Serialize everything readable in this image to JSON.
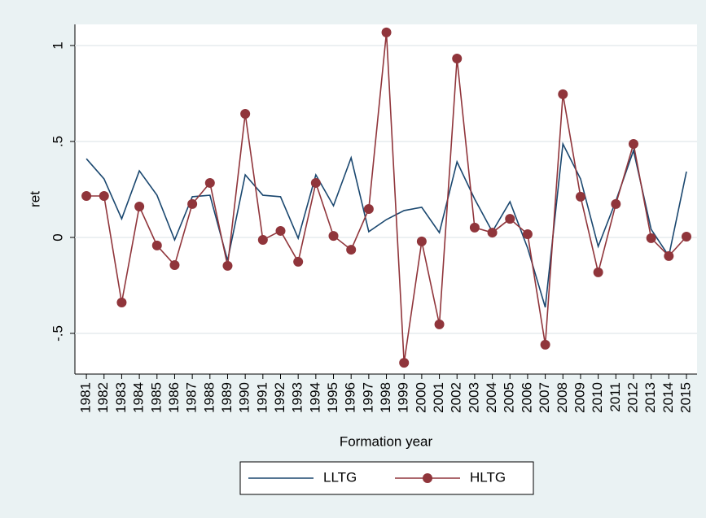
{
  "chart_data": {
    "type": "line",
    "x": [
      1981,
      1982,
      1983,
      1984,
      1985,
      1986,
      1987,
      1988,
      1989,
      1990,
      1991,
      1992,
      1993,
      1994,
      1995,
      1996,
      1997,
      1998,
      1999,
      2000,
      2001,
      2002,
      2003,
      2004,
      2005,
      2006,
      2007,
      2008,
      2009,
      2010,
      2011,
      2012,
      2013,
      2014,
      2015
    ],
    "series": [
      {
        "name": "LLTG",
        "color": "#1a476f",
        "marker": false,
        "values": [
          0.41,
          0.305,
          0.097,
          0.347,
          0.22,
          -0.013,
          0.212,
          0.22,
          -0.12,
          0.326,
          0.22,
          0.212,
          -0.004,
          0.326,
          0.165,
          0.415,
          0.03,
          0.093,
          0.14,
          0.157,
          0.025,
          0.394,
          0.2,
          0.03,
          0.186,
          -0.055,
          -0.364,
          0.487,
          0.305,
          -0.047,
          0.19,
          0.453,
          0.042,
          -0.097,
          0.343
        ]
      },
      {
        "name": "HLTG",
        "color": "#90353b",
        "marker": true,
        "values": [
          0.216,
          0.216,
          -0.339,
          0.161,
          -0.042,
          -0.144,
          0.174,
          0.284,
          -0.148,
          0.644,
          -0.013,
          0.034,
          -0.127,
          0.284,
          0.008,
          -0.064,
          0.148,
          1.068,
          -0.653,
          -0.021,
          -0.453,
          0.932,
          0.051,
          0.025,
          0.097,
          0.017,
          -0.559,
          0.746,
          0.212,
          -0.182,
          0.174,
          0.487,
          -0.004,
          -0.097,
          0.004
        ]
      }
    ],
    "xlabel": "Formation year",
    "ylabel": "ret",
    "xlim": [
      1980.35,
      2015.6
    ],
    "ylim": [
      -0.712,
      1.11
    ],
    "xticks": [
      1981,
      1982,
      1983,
      1984,
      1985,
      1986,
      1987,
      1988,
      1989,
      1990,
      1991,
      1992,
      1993,
      1994,
      1995,
      1996,
      1997,
      1998,
      1999,
      2000,
      2001,
      2002,
      2003,
      2004,
      2005,
      2006,
      2007,
      2008,
      2009,
      2010,
      2011,
      2012,
      2013,
      2014,
      2015
    ],
    "yticks": [
      {
        "value": -0.5,
        "label": "-.5"
      },
      0,
      {
        "value": 0.5,
        "label": ".5"
      },
      1
    ],
    "grid": true,
    "legend": "bottom"
  }
}
